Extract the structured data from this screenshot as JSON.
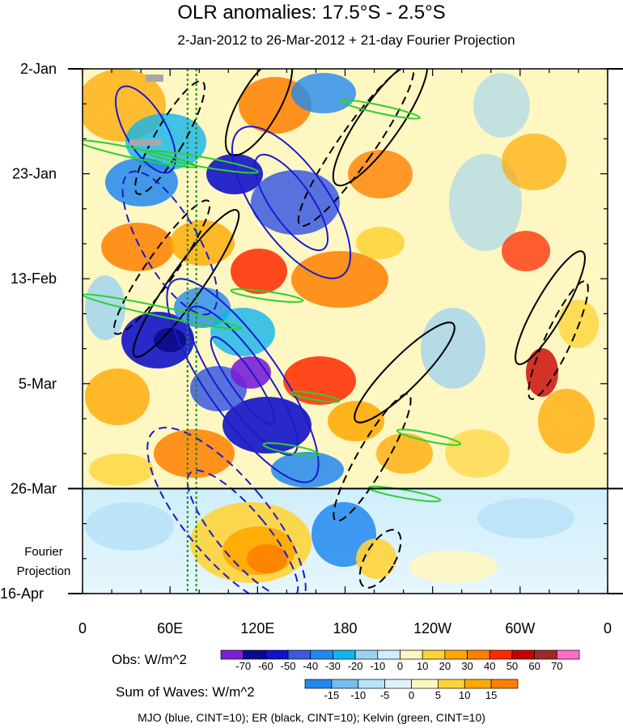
{
  "chart_data": {
    "type": "heatmap",
    "title": "OLR anomalies: 17.5°S - 2.5°S",
    "subtitle": "2-Jan-2012 to 26-Mar-2012 + 21-day Fourier Projection",
    "x_ticks": [
      "0",
      "60E",
      "120E",
      "180",
      "120W",
      "60W",
      "0"
    ],
    "x_tick_lon": [
      0,
      60,
      120,
      180,
      240,
      300,
      360
    ],
    "y_ticks": [
      "2-Jan",
      "23-Jan",
      "13-Feb",
      "5-Mar",
      "26-Mar"
    ],
    "y_tick_day": [
      0,
      21,
      42,
      63,
      84
    ],
    "y_end_label": "16-Apr",
    "y_range_days": [
      0,
      105
    ],
    "x_range_lon": [
      0,
      360
    ],
    "projection_label": [
      "Fourier",
      "Projection"
    ],
    "projection_start_day": 84,
    "reference_lines_lon": [
      72,
      78
    ],
    "obs_legend": {
      "label": "Obs: W/m^2",
      "levels": [
        "-70",
        "-60",
        "-50",
        "-40",
        "-30",
        "-20",
        "-10",
        "0",
        "10",
        "20",
        "30",
        "40",
        "50",
        "60",
        "70"
      ],
      "colors": [
        "#7a1fd6",
        "#0a0a8c",
        "#1212c8",
        "#3a5ae0",
        "#2288ee",
        "#12b4ee",
        "#9bd2f2",
        "#cfeefb",
        "#fff7c2",
        "#ffd43a",
        "#ffa800",
        "#ff7f00",
        "#ff2a00",
        "#c80000",
        "#a02828",
        "#ff6ec8"
      ]
    },
    "waves_legend": {
      "label": "Sum of Waves: W/m^2",
      "levels": [
        "-15",
        "-10",
        "-5",
        "0",
        "5",
        "10",
        "15"
      ],
      "colors": [
        "#2288ee",
        "#74bdf0",
        "#b8e2f7",
        "#dff3fb",
        "#fff7c2",
        "#ffd43a",
        "#ffa800",
        "#ff7f00"
      ]
    },
    "footer": "MJO (blue, CINT=10); ER (black, CINT=10); Kelvin (green, CINT=10)",
    "series": [
      {
        "name": "MJO",
        "color": "#1a1ad2"
      },
      {
        "name": "ER",
        "color": "#000000"
      },
      {
        "name": "Kelvin",
        "color": "#2bd12b"
      }
    ]
  }
}
